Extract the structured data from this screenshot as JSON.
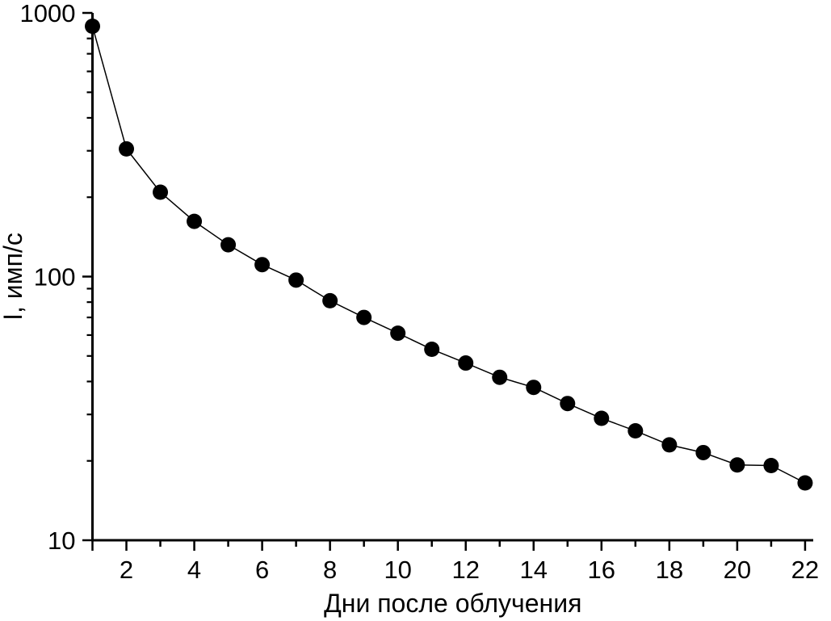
{
  "figure": {
    "background": "#ffffff"
  },
  "chart_data": {
    "type": "line",
    "marker": "filled-circle",
    "x": [
      1,
      2,
      3,
      4,
      5,
      6,
      7,
      8,
      9,
      10,
      11,
      12,
      13,
      14,
      15,
      16,
      17,
      18,
      19,
      20,
      21,
      22
    ],
    "series": [
      {
        "name": "I",
        "values": [
          890,
          305,
          209,
          162,
          132,
          111,
          97,
          81,
          70,
          61,
          53,
          47,
          41.5,
          38,
          33,
          29,
          26,
          23,
          21.5,
          19.3,
          19.2,
          16.5
        ]
      }
    ],
    "title": "",
    "xlabel": "Дни после облучения",
    "ylabel": "I, имп/с",
    "xscale": "linear",
    "yscale": "log",
    "xlim": [
      1,
      22
    ],
    "ylim": [
      10,
      1000
    ],
    "x_major_ticks": [
      2,
      4,
      6,
      8,
      10,
      12,
      14,
      16,
      18,
      20,
      22
    ],
    "x_major_tick_labels": [
      "2",
      "4",
      "6",
      "8",
      "10",
      "12",
      "14",
      "16",
      "18",
      "20",
      "22"
    ],
    "x_minor_ticks": [
      1,
      3,
      5,
      7,
      9,
      11,
      13,
      15,
      17,
      19,
      21
    ],
    "y_major_ticks": [
      10,
      100,
      1000
    ],
    "y_major_tick_labels": [
      "10",
      "100",
      "1000"
    ],
    "grid": false,
    "legend": null,
    "colors": {
      "line": "#000000",
      "marker": "#000000",
      "axis": "#000000",
      "text": "#000000",
      "background": "#ffffff"
    }
  }
}
